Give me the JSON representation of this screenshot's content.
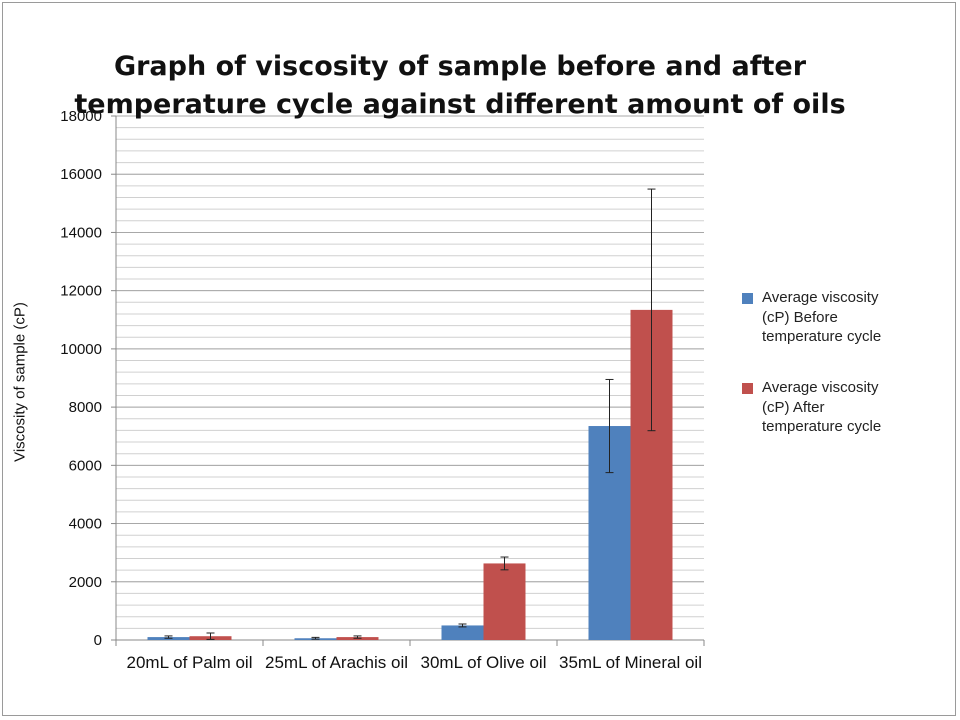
{
  "chart_data": {
    "type": "bar",
    "title": "Graph of viscosity of sample before and after temperature cycle against different amount of oils",
    "xlabel": "",
    "ylabel": "Viscosity of sample (cP)",
    "ylim": [
      0,
      18000
    ],
    "yticks": [
      0,
      2000,
      4000,
      6000,
      8000,
      10000,
      12000,
      14000,
      16000,
      18000
    ],
    "ytick_labels": [
      "0",
      "2000",
      "4000",
      "6000",
      "8000",
      "10000",
      "12000",
      "14000",
      "16000",
      "18000"
    ],
    "minor_grid_step": 400,
    "grid": true,
    "legend_position": "right",
    "categories": [
      "20mL of Palm oil",
      "25mL of Arachis oil",
      "30mL of Olive oil",
      "35mL of Mineral oil"
    ],
    "series": [
      {
        "name": "Average viscosity (cP) Before temperature cycle",
        "color": "#4F81BD",
        "values": [
          100,
          60,
          500,
          7350
        ],
        "errors": [
          40,
          30,
          50,
          1600
        ]
      },
      {
        "name": "Average viscosity (cP) After temperature cycle",
        "color": "#C0504D",
        "values": [
          130,
          100,
          2630,
          11340
        ],
        "errors": [
          110,
          40,
          220,
          4150
        ]
      }
    ]
  }
}
